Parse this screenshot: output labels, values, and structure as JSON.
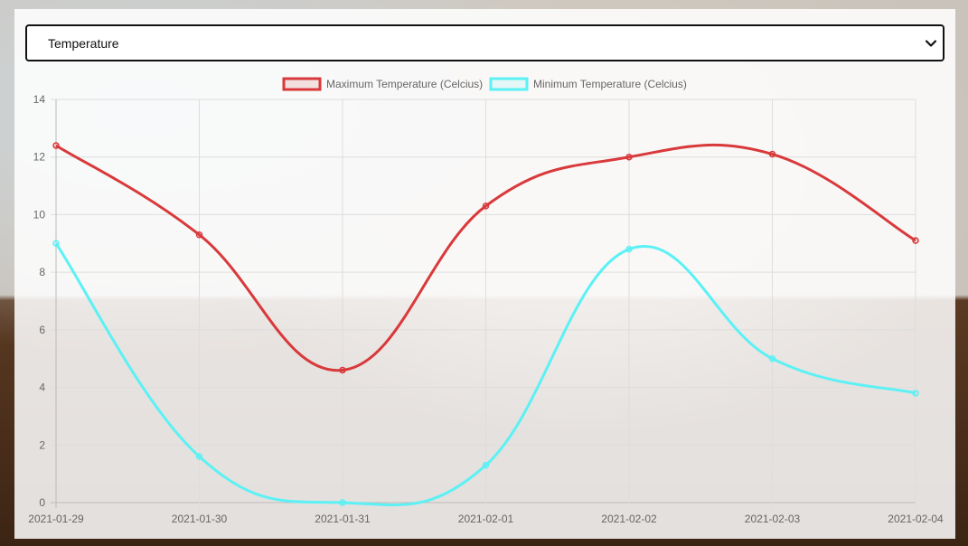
{
  "select": {
    "value": "Temperature",
    "icon": "chevron-down-icon"
  },
  "chart_data": {
    "type": "line",
    "categories": [
      "2021-01-29",
      "2021-01-30",
      "2021-01-31",
      "2021-02-01",
      "2021-02-02",
      "2021-02-03",
      "2021-02-04"
    ],
    "series": [
      {
        "name": "Maximum Temperature (Celcius)",
        "color": "#d9393b",
        "fill": "rgba(217,57,59,0.12)",
        "values": [
          12.4,
          9.3,
          4.6,
          10.3,
          12.0,
          12.1,
          9.1
        ]
      },
      {
        "name": "Minimum Temperature (Celcius)",
        "color": "#5bf1f5",
        "fill": "rgba(91,241,245,0.12)",
        "values": [
          9.0,
          1.6,
          0.0,
          1.3,
          8.8,
          5.0,
          3.8
        ]
      }
    ],
    "yticks": [
      "0",
      "2",
      "4",
      "6",
      "8",
      "10",
      "12",
      "14"
    ],
    "ylim": [
      0,
      14
    ],
    "grid": true,
    "legend": "top-center",
    "curve": "smooth"
  }
}
